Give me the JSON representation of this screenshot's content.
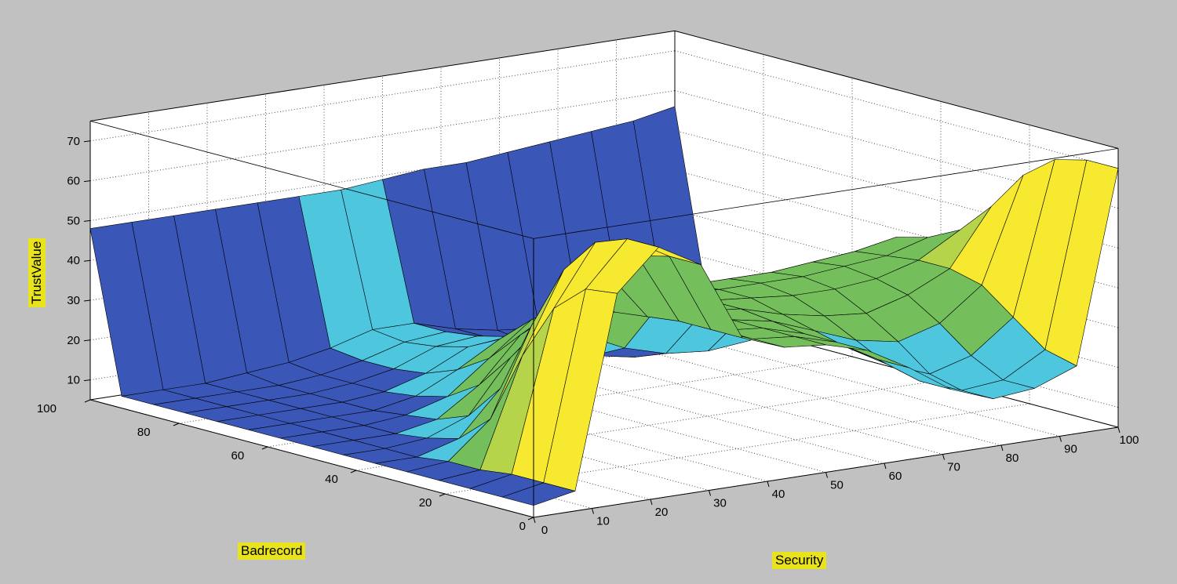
{
  "figure": {
    "background": "#c1c1c1",
    "plot_background": "#ffffff",
    "label_highlight": "#e8e31d"
  },
  "chart_data": {
    "type": "surface",
    "title": "",
    "xlabel": "Security",
    "ylabel": "Badrecord",
    "zlabel": "TrustValue",
    "xlim": [
      0,
      100
    ],
    "ylim": [
      0,
      100
    ],
    "zlim": [
      5,
      75
    ],
    "x_ticks": [
      0,
      10,
      20,
      30,
      40,
      50,
      60,
      70,
      80,
      90,
      100
    ],
    "y_ticks": [
      0,
      20,
      40,
      60,
      80,
      100
    ],
    "z_ticks": [
      10,
      20,
      30,
      40,
      50,
      60,
      70
    ],
    "grid": "dotted",
    "view": {
      "azimuth": -37.5,
      "elevation": 30
    },
    "x": [
      0,
      7.1,
      14.3,
      21.4,
      28.6,
      35.7,
      42.9,
      50,
      57.1,
      64.3,
      71.4,
      78.6,
      85.7,
      92.9,
      100
    ],
    "y": [
      0,
      7.1,
      14.3,
      21.4,
      28.6,
      35.7,
      42.9,
      50,
      57.1,
      64.3,
      71.4,
      78.6,
      85.7,
      92.9,
      100
    ],
    "z": [
      [
        8,
        10,
        58,
        68,
        62,
        42,
        38,
        37,
        34,
        28,
        21,
        17,
        18,
        22,
        70
      ],
      [
        8,
        10,
        57,
        68,
        62,
        42,
        38,
        37,
        34,
        28,
        21,
        17,
        18,
        24,
        70
      ],
      [
        8,
        10,
        50,
        65,
        60,
        42,
        38,
        37,
        34,
        29,
        23,
        19,
        22,
        30,
        68
      ],
      [
        8,
        9,
        36,
        56,
        54,
        41,
        38,
        37,
        35,
        31,
        27,
        25,
        28,
        36,
        62
      ],
      [
        8,
        9,
        18,
        40,
        46,
        40,
        38,
        37,
        36,
        33,
        31,
        30,
        33,
        38,
        52
      ],
      [
        8,
        8,
        11,
        22,
        36,
        38,
        38,
        37,
        36,
        35,
        34,
        34,
        35,
        38,
        44
      ],
      [
        8,
        8,
        9,
        13,
        26,
        35,
        37,
        37,
        36,
        35,
        35,
        35,
        36,
        37,
        40
      ],
      [
        8,
        8,
        8,
        10,
        17,
        28,
        34,
        36,
        35,
        34,
        34,
        34,
        35,
        36,
        38
      ],
      [
        8,
        8,
        8,
        9,
        12,
        20,
        28,
        31,
        29,
        26,
        22,
        20,
        22,
        26,
        32
      ],
      [
        8,
        8,
        8,
        8,
        10,
        15,
        21,
        23,
        19,
        14,
        11,
        10,
        11,
        14,
        20
      ],
      [
        8,
        8,
        8,
        8,
        9,
        12,
        17,
        18,
        14,
        10,
        8,
        8,
        8,
        10,
        14
      ],
      [
        8,
        8,
        8,
        8,
        9,
        11,
        15,
        16,
        12,
        9,
        8,
        8,
        8,
        9,
        12
      ],
      [
        8,
        8,
        8,
        8,
        9,
        11,
        14,
        15,
        12,
        9,
        8,
        8,
        8,
        9,
        11
      ],
      [
        8,
        8,
        8,
        9,
        10,
        12,
        15,
        15,
        12,
        10,
        9,
        8,
        8,
        9,
        11
      ],
      [
        48,
        48,
        48,
        48,
        48,
        48,
        48,
        49,
        50,
        50,
        51,
        52,
        53,
        54,
        56
      ]
    ],
    "colormap": [
      {
        "max": 13,
        "color": "#3a57b8"
      },
      {
        "max": 25,
        "color": "#4ec6de"
      },
      {
        "max": 45,
        "color": "#74bf5c"
      },
      {
        "max": 57,
        "color": "#b6d44a"
      },
      {
        "max": 1000,
        "color": "#f6e930"
      }
    ]
  }
}
